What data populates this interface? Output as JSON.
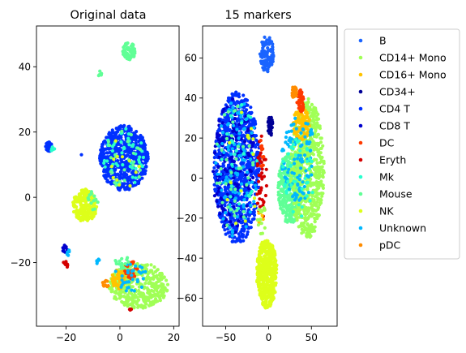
{
  "chart_data": [
    {
      "type": "scatter",
      "title": "Original data",
      "xlabel": "",
      "ylabel": "",
      "xlim": [
        -31,
        22
      ],
      "ylim": [
        -39.5,
        52.5
      ],
      "xticks": [
        -20,
        0,
        20
      ],
      "yticks": [
        -20,
        0,
        20,
        40
      ],
      "xtick_labels": [
        "−20",
        "0",
        "20"
      ],
      "ytick_labels": [
        "−20",
        "0",
        "20",
        "40"
      ],
      "clusters": [
        {
          "series": "Mouse",
          "cx": 3.5,
          "cy": 45,
          "rx": 2.5,
          "ry": 3,
          "n": 60
        },
        {
          "series": "Mouse",
          "cx": -7.5,
          "cy": 38,
          "rx": 0.8,
          "ry": 0.8,
          "n": 5
        },
        {
          "series": "CD4 T",
          "cx": 1.5,
          "cy": 12,
          "rx": 9,
          "ry": 10,
          "n": 650
        },
        {
          "series": "Mk",
          "cx": 1.5,
          "cy": 12,
          "rx": 8,
          "ry": 9,
          "n": 55
        },
        {
          "series": "Mouse",
          "cx": 1.5,
          "cy": 12,
          "rx": 8,
          "ry": 9,
          "n": 25
        },
        {
          "series": "NK",
          "cx": 0.5,
          "cy": 10,
          "rx": 7,
          "ry": 8,
          "n": 12
        },
        {
          "series": "CD4 T",
          "cx": -26.5,
          "cy": 15.5,
          "rx": 1.2,
          "ry": 1.5,
          "n": 45
        },
        {
          "series": "Mk",
          "cx": -25,
          "cy": 14.5,
          "rx": 1,
          "ry": 1,
          "n": 6
        },
        {
          "series": "NK",
          "cx": -13,
          "cy": -2.5,
          "rx": 4.5,
          "ry": 5,
          "n": 220
        },
        {
          "series": "Mouse",
          "cx": -10,
          "cy": -1,
          "rx": 2,
          "ry": 3,
          "n": 15
        },
        {
          "series": "CD8 T",
          "cx": -20.5,
          "cy": -16,
          "rx": 1,
          "ry": 1.5,
          "n": 12
        },
        {
          "series": "Eryth",
          "cx": -20.2,
          "cy": -20.5,
          "rx": 0.8,
          "ry": 1.5,
          "n": 10
        },
        {
          "series": "Unknown",
          "cx": -19,
          "cy": -17,
          "rx": 0.8,
          "ry": 0.8,
          "n": 5
        },
        {
          "series": "CD14+ Mono",
          "cx": 7,
          "cy": -27,
          "rx": 11,
          "ry": 7,
          "n": 380
        },
        {
          "series": "CD16+ Mono",
          "cx": -0.5,
          "cy": -25,
          "rx": 2.5,
          "ry": 3,
          "n": 60
        },
        {
          "series": "pDC",
          "cx": -5,
          "cy": -26.5,
          "rx": 1.5,
          "ry": 1,
          "n": 10
        },
        {
          "series": "DC",
          "cx": 4,
          "cy": -22,
          "rx": 2.5,
          "ry": 3,
          "n": 25
        },
        {
          "series": "Unknown",
          "cx": 4,
          "cy": -24,
          "rx": 6,
          "ry": 5,
          "n": 35
        },
        {
          "series": "Mouse",
          "cx": 1,
          "cy": -20,
          "rx": 3,
          "ry": 2,
          "n": 15
        },
        {
          "series": "Eryth",
          "cx": 4,
          "cy": -34,
          "rx": 0.6,
          "ry": 0.6,
          "n": 4
        },
        {
          "series": "Unknown",
          "cx": -8.5,
          "cy": -19.5,
          "rx": 1,
          "ry": 0.8,
          "n": 6
        },
        {
          "series": "CD4 T",
          "cx": -14,
          "cy": 13,
          "rx": 0.3,
          "ry": 0.3,
          "n": 1
        }
      ]
    },
    {
      "type": "scatter",
      "title": "15 markers",
      "xlabel": "",
      "ylabel": "",
      "xlim": [
        -77,
        80
      ],
      "ylim": [
        -74,
        76
      ],
      "xticks": [
        -50,
        0,
        50
      ],
      "yticks": [
        -60,
        -40,
        -20,
        0,
        20,
        40,
        60
      ],
      "xtick_labels": [
        "−50",
        "0",
        "50"
      ],
      "ytick_labels": [
        "−60",
        "−40",
        "−20",
        "0",
        "20",
        "40",
        "60"
      ],
      "clusters": [
        {
          "series": "B",
          "cx": -2,
          "cy": 62,
          "rx": 8,
          "ry": 9,
          "n": 110
        },
        {
          "series": "CD4 T",
          "cx": -37,
          "cy": 5,
          "rx": 27,
          "ry": 38,
          "n": 900
        },
        {
          "series": "CD8 T",
          "cx": -40,
          "cy": 5,
          "rx": 25,
          "ry": 35,
          "n": 160
        },
        {
          "series": "Unknown",
          "cx": -37,
          "cy": 5,
          "rx": 25,
          "ry": 35,
          "n": 110
        },
        {
          "series": "Mouse",
          "cx": -40,
          "cy": 5,
          "rx": 22,
          "ry": 32,
          "n": 40
        },
        {
          "series": "Mk",
          "cx": -35,
          "cy": 8,
          "rx": 22,
          "ry": 30,
          "n": 25
        },
        {
          "series": "NK",
          "cx": -30,
          "cy": 5,
          "rx": 22,
          "ry": 30,
          "n": 15
        },
        {
          "series": "CD34+",
          "cx": 2,
          "cy": 26,
          "rx": 3,
          "ry": 5,
          "n": 40
        },
        {
          "series": "Mouse",
          "cx": 25,
          "cy": -5,
          "rx": 14,
          "ry": 18,
          "n": 320
        },
        {
          "series": "CD14+ Mono",
          "cx": 45,
          "cy": 5,
          "rx": 20,
          "ry": 35,
          "n": 650
        },
        {
          "series": "CD16+ Mono",
          "cx": 38,
          "cy": 27,
          "rx": 10,
          "ry": 8,
          "n": 120
        },
        {
          "series": "DC",
          "cx": 37,
          "cy": 38,
          "rx": 4,
          "ry": 6,
          "n": 40
        },
        {
          "series": "pDC",
          "cx": 30,
          "cy": 43,
          "rx": 3,
          "ry": 3,
          "n": 22
        },
        {
          "series": "Unknown",
          "cx": 35,
          "cy": 10,
          "rx": 20,
          "ry": 22,
          "n": 110
        },
        {
          "series": "Mk",
          "cx": 35,
          "cy": 0,
          "rx": 20,
          "ry": 20,
          "n": 40
        },
        {
          "series": "NK",
          "cx": -2,
          "cy": -48,
          "rx": 12,
          "ry": 17,
          "n": 520
        },
        {
          "series": "NK",
          "cx": -8,
          "cy": -34,
          "rx": 3,
          "ry": 3,
          "n": 15
        },
        {
          "series": "Eryth",
          "cx": -8,
          "cy": 0,
          "rx": 6,
          "ry": 22,
          "n": 40
        },
        {
          "series": "DC",
          "cx": -8,
          "cy": 12,
          "rx": 4,
          "ry": 8,
          "n": 12
        },
        {
          "series": "CD16+ Mono",
          "cx": -10,
          "cy": -20,
          "rx": 4,
          "ry": 6,
          "n": 8
        },
        {
          "series": "CD14+ Mono",
          "cx": -8,
          "cy": -20,
          "rx": 5,
          "ry": 8,
          "n": 15
        }
      ]
    }
  ],
  "legend": {
    "location": "right",
    "items": [
      {
        "label": "B",
        "color": "#1a64ff"
      },
      {
        "label": "CD14+ Mono",
        "color": "#a0ff56"
      },
      {
        "label": "CD16+ Mono",
        "color": "#ffc300"
      },
      {
        "label": "CD34+",
        "color": "#000096"
      },
      {
        "label": "CD4 T",
        "color": "#0030ff"
      },
      {
        "label": "CD8 T",
        "color": "#0000cd"
      },
      {
        "label": "DC",
        "color": "#ff3a00"
      },
      {
        "label": "Eryth",
        "color": "#d40000"
      },
      {
        "label": "Mk",
        "color": "#29ffce"
      },
      {
        "label": "Mouse",
        "color": "#60ff96"
      },
      {
        "label": "NK",
        "color": "#ddff1a"
      },
      {
        "label": "Unknown",
        "color": "#00b8ff"
      },
      {
        "label": "pDC",
        "color": "#ff8c00"
      }
    ]
  }
}
